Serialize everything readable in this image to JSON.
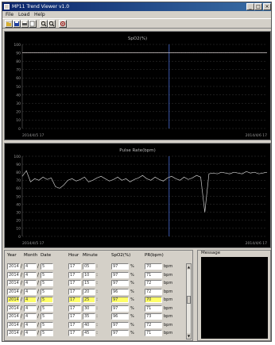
{
  "window": {
    "title": "MP11 Trend Viewer v1.0"
  },
  "menu": [
    "File",
    "Load",
    "Help"
  ],
  "toolbar": {
    "icons": [
      "open-icon",
      "save-icon",
      "print-icon",
      "export-icon",
      "zoom-in-icon",
      "zoom-out-icon",
      "settings-icon"
    ]
  },
  "chart_data": [
    {
      "type": "line",
      "title": "SpO2(%)",
      "ylim": [
        0,
        100
      ],
      "y_ticks": [
        100,
        90,
        80,
        70,
        60,
        50,
        40,
        30,
        20,
        10,
        0
      ],
      "start_label": "2014/4/5 17",
      "end_label": "2014/4/6 17",
      "threshold": 90,
      "series": [
        {
          "values": [
            90,
            90,
            90,
            90,
            90,
            90,
            90,
            90,
            90,
            90,
            90,
            90,
            90,
            90,
            90,
            90,
            90,
            90,
            90,
            90,
            90,
            90,
            90,
            90,
            90,
            90,
            90,
            90,
            90,
            90,
            90,
            90,
            90,
            90,
            90,
            90,
            90,
            90,
            90,
            90,
            90,
            90,
            90,
            90,
            90,
            90,
            90,
            90,
            90,
            90
          ]
        }
      ],
      "spike_x": 0.6
    },
    {
      "type": "line",
      "title": "Pulse Rate(bpm)",
      "ylim": [
        0,
        100
      ],
      "y_ticks": [
        100,
        90,
        80,
        70,
        60,
        50,
        40,
        30,
        20,
        10,
        0
      ],
      "start_label": "2014/4/5 17",
      "end_label": "2014/4/6 17",
      "series": [
        {
          "values": [
            75,
            82,
            68,
            72,
            70,
            74,
            71,
            73,
            62,
            60,
            64,
            70,
            72,
            69,
            71,
            74,
            68,
            70,
            73,
            75,
            72,
            69,
            71,
            74,
            70,
            72,
            68,
            71,
            73,
            76,
            72,
            70,
            74,
            71,
            69,
            73,
            75,
            72,
            70,
            74,
            71,
            73,
            76,
            74,
            30,
            78,
            79,
            78,
            80,
            79,
            78,
            80,
            79,
            78,
            81,
            79,
            80,
            78,
            79,
            80
          ]
        }
      ],
      "spike_x": 0.6,
      "dip_x": 0.8
    }
  ],
  "table": {
    "headers": [
      "Year",
      "Month",
      "Date",
      "Hour",
      "Minute",
      "SpO2(%)",
      "PR(bpm)"
    ],
    "slash": "/",
    "colon": ":",
    "pct": "%",
    "bpm": "bpm",
    "rows": [
      {
        "year": "2014",
        "month": "4",
        "date": "5",
        "hour": "17",
        "minute": "05",
        "spo2": "97",
        "pr": "70",
        "selected": false
      },
      {
        "year": "2014",
        "month": "4",
        "date": "5",
        "hour": "17",
        "minute": "10",
        "spo2": "97",
        "pr": "71",
        "selected": false
      },
      {
        "year": "2014",
        "month": "4",
        "date": "5",
        "hour": "17",
        "minute": "15",
        "spo2": "97",
        "pr": "72",
        "selected": false
      },
      {
        "year": "2014",
        "month": "4",
        "date": "5",
        "hour": "17",
        "minute": "20",
        "spo2": "96",
        "pr": "72",
        "selected": false
      },
      {
        "year": "2014",
        "month": "4",
        "date": "5",
        "hour": "17",
        "minute": "25",
        "spo2": "97",
        "pr": "70",
        "selected": true
      },
      {
        "year": "2014",
        "month": "4",
        "date": "5",
        "hour": "17",
        "minute": "30",
        "spo2": "97",
        "pr": "71",
        "selected": false
      },
      {
        "year": "2014",
        "month": "4",
        "date": "5",
        "hour": "17",
        "minute": "35",
        "spo2": "96",
        "pr": "73",
        "selected": false
      },
      {
        "year": "2014",
        "month": "4",
        "date": "5",
        "hour": "17",
        "minute": "40",
        "spo2": "97",
        "pr": "72",
        "selected": false
      },
      {
        "year": "2014",
        "month": "4",
        "date": "5",
        "hour": "17",
        "minute": "45",
        "spo2": "97",
        "pr": "71",
        "selected": false
      }
    ]
  },
  "message": {
    "label": "Message"
  },
  "colors": {
    "grid": "#3a3a3a",
    "line": "#c8c8c8",
    "spike": "#4a6fd8",
    "threshold": "#c05050"
  }
}
